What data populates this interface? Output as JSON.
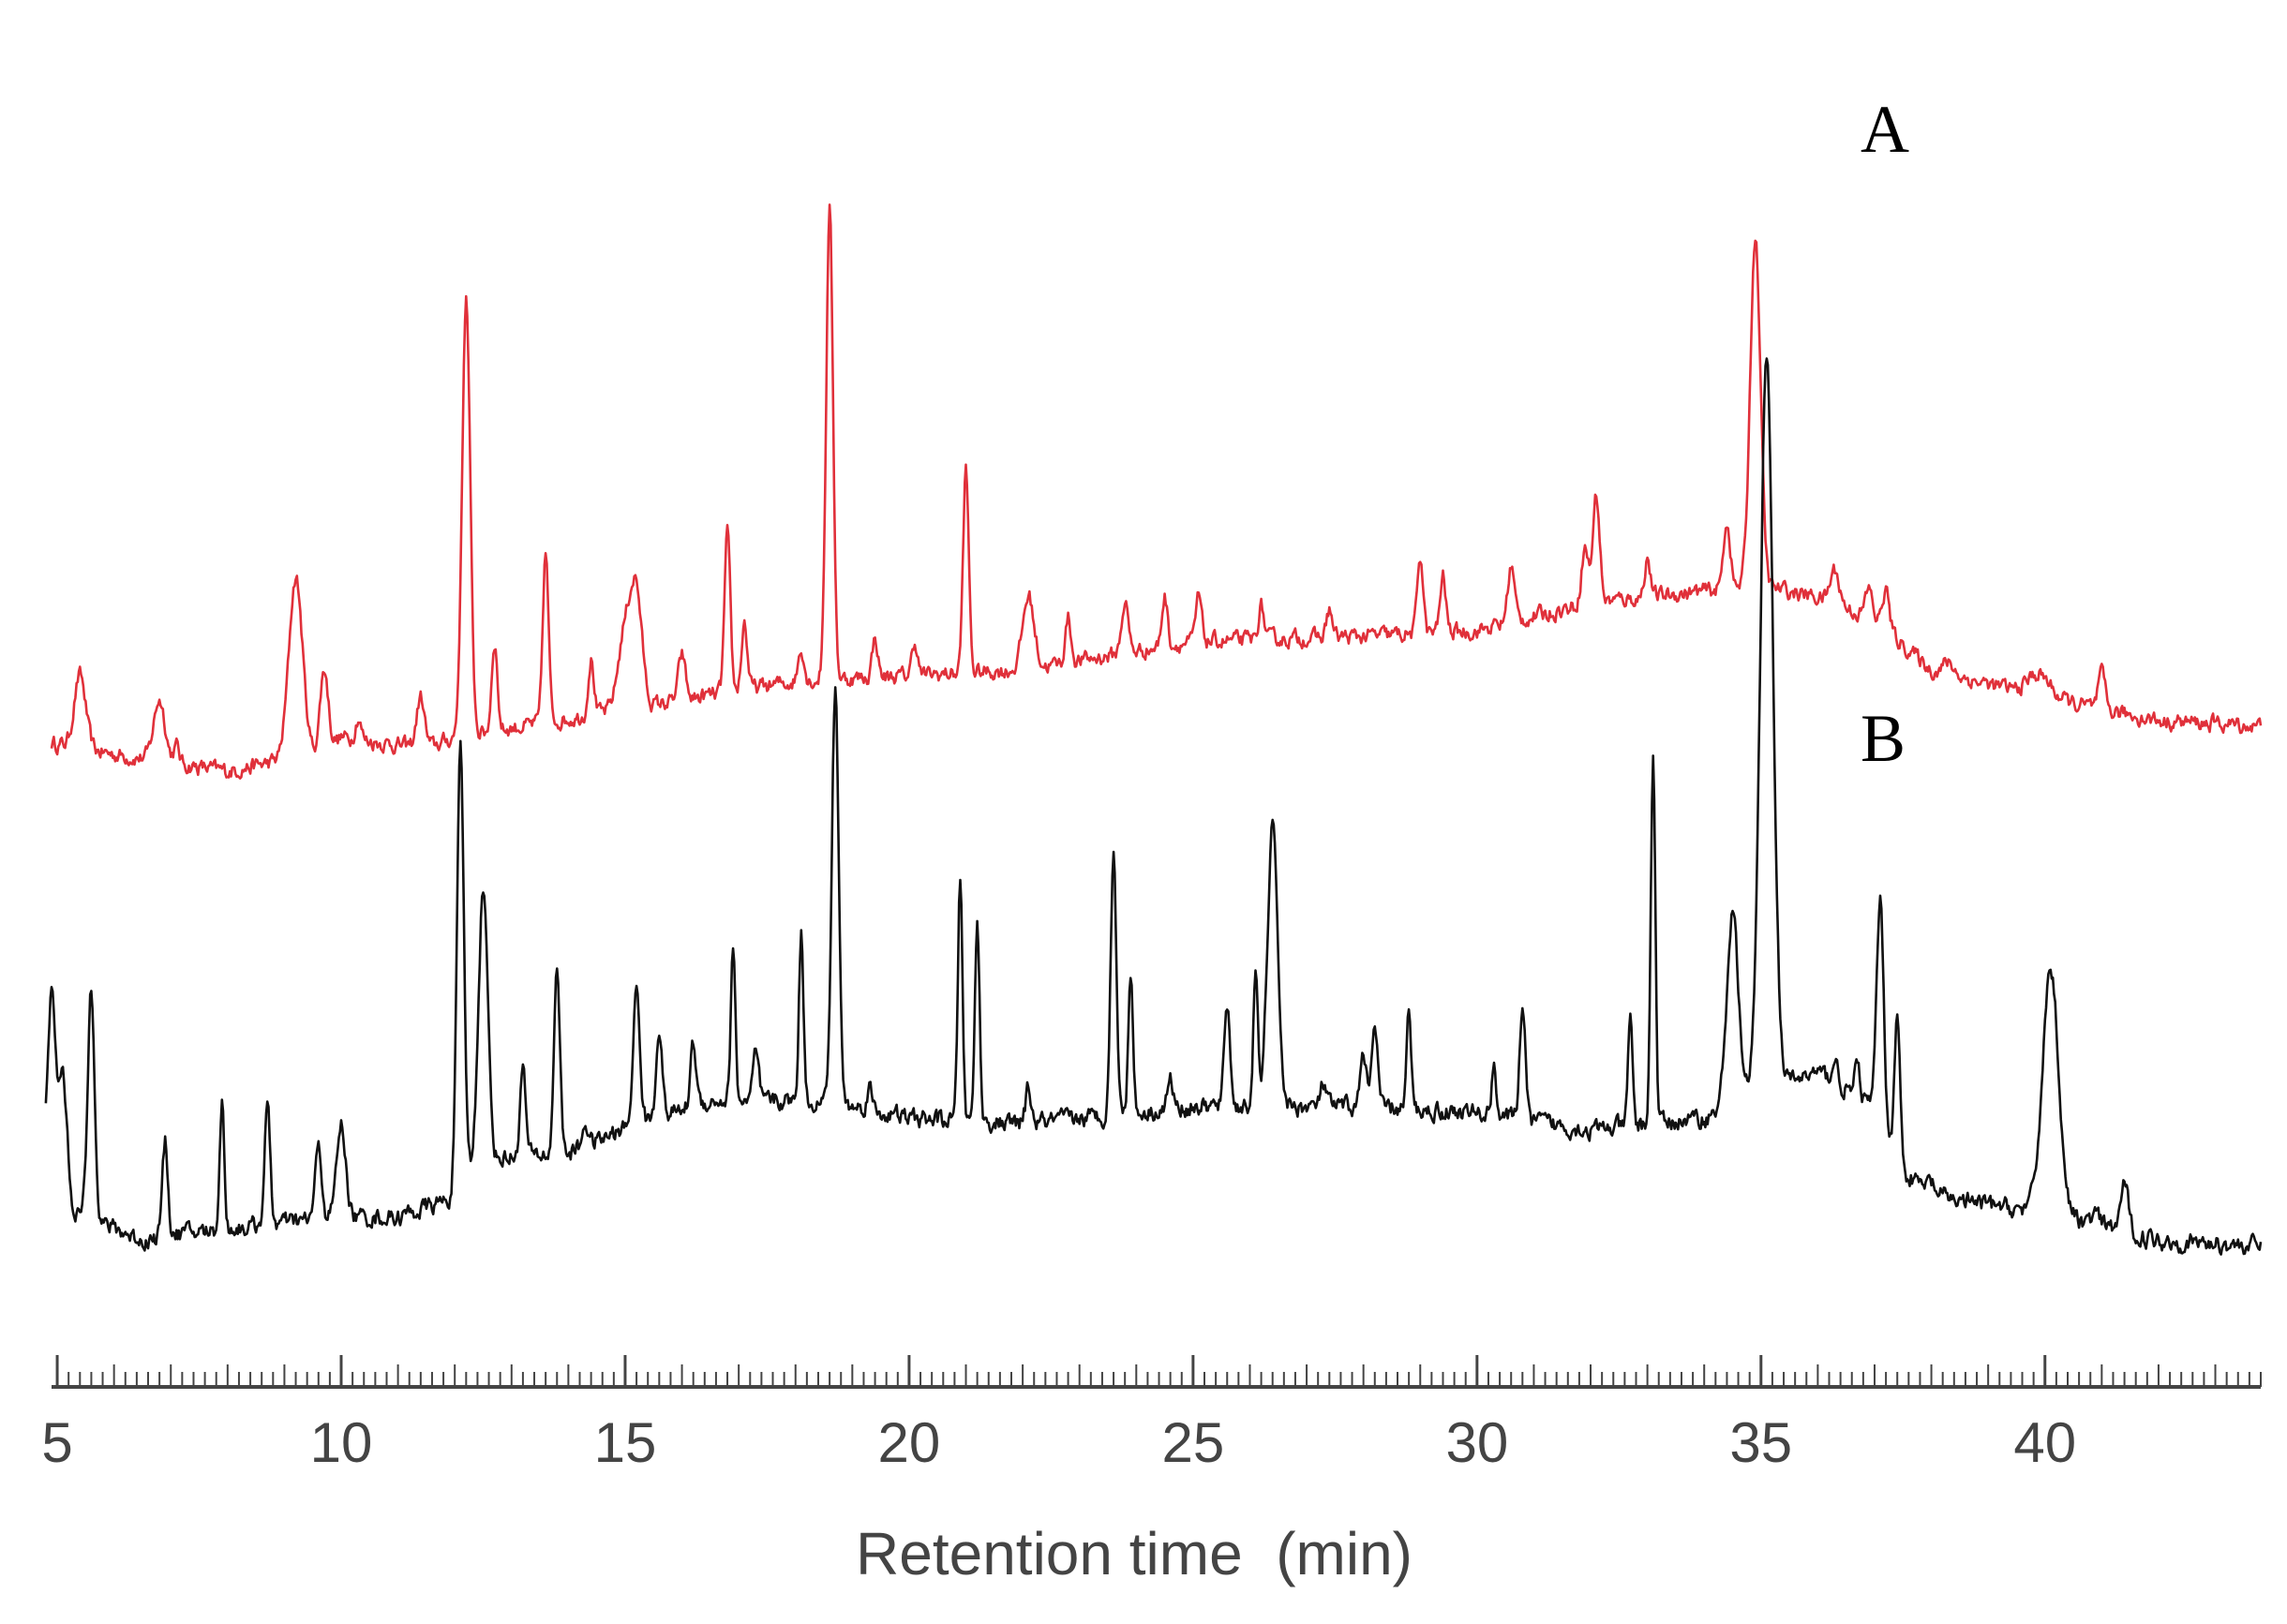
{
  "chart_data": {
    "type": "line",
    "title": "",
    "xlabel": "Retention time  (min)",
    "ylabel": "",
    "xlim": [
      4.9,
      43.8
    ],
    "ylim": [
      0,
      100
    ],
    "grid": false,
    "legend": "none",
    "x_ticks": [
      5,
      10,
      15,
      20,
      25,
      30,
      35,
      40
    ],
    "minor_tick_step": 0.2,
    "series": [
      {
        "name": "A",
        "label": "A",
        "color": "#e0303a",
        "baseline": [
          [
            4.9,
            2
          ],
          [
            6,
            0
          ],
          [
            8,
            -3
          ],
          [
            9.5,
            0
          ],
          [
            10,
            3
          ],
          [
            11.5,
            1
          ],
          [
            12,
            3
          ],
          [
            15,
            8
          ],
          [
            18,
            13
          ],
          [
            20,
            14
          ],
          [
            22,
            15
          ],
          [
            25,
            20
          ],
          [
            28,
            21
          ],
          [
            30,
            22
          ],
          [
            32,
            27
          ],
          [
            34,
            29
          ],
          [
            35,
            30
          ],
          [
            36,
            28
          ],
          [
            37,
            24
          ],
          [
            38,
            15
          ],
          [
            40,
            10
          ],
          [
            42,
            6
          ],
          [
            43.8,
            5
          ]
        ],
        "peaks": [
          [
            5.4,
            13,
            0.1
          ],
          [
            6.8,
            11,
            0.1
          ],
          [
            7.1,
            3,
            0.05
          ],
          [
            9.2,
            32,
            0.12
          ],
          [
            9.7,
            14,
            0.07
          ],
          [
            10.3,
            4,
            0.05
          ],
          [
            11.4,
            9,
            0.07
          ],
          [
            12.2,
            78,
            0.07
          ],
          [
            12.7,
            16,
            0.05
          ],
          [
            13.6,
            30,
            0.05
          ],
          [
            14.4,
            10,
            0.05
          ],
          [
            15.0,
            14,
            0.12
          ],
          [
            15.2,
            19,
            0.1
          ],
          [
            16.0,
            8,
            0.06
          ],
          [
            16.8,
            28,
            0.05
          ],
          [
            17.1,
            12,
            0.05
          ],
          [
            18.1,
            6,
            0.05
          ],
          [
            18.6,
            84,
            0.06
          ],
          [
            19.4,
            7,
            0.05
          ],
          [
            20.1,
            6,
            0.05
          ],
          [
            21.0,
            36,
            0.05
          ],
          [
            22.1,
            13,
            0.1
          ],
          [
            22.8,
            8,
            0.05
          ],
          [
            23.8,
            9,
            0.06
          ],
          [
            24.5,
            9,
            0.05
          ],
          [
            25.1,
            8,
            0.05
          ],
          [
            26.2,
            6,
            0.05
          ],
          [
            27.4,
            5,
            0.05
          ],
          [
            29.0,
            14,
            0.05
          ],
          [
            29.4,
            10,
            0.05
          ],
          [
            30.6,
            10,
            0.06
          ],
          [
            31.9,
            10,
            0.06
          ],
          [
            32.1,
            19,
            0.06
          ],
          [
            33.0,
            7,
            0.05
          ],
          [
            34.4,
            12,
            0.06
          ],
          [
            34.9,
            62,
            0.09
          ],
          [
            36.3,
            6,
            0.08
          ],
          [
            36.9,
            5,
            0.06
          ],
          [
            37.2,
            7,
            0.06
          ],
          [
            38.3,
            2,
            0.1
          ],
          [
            39.9,
            4,
            0.2
          ],
          [
            41.0,
            6,
            0.06
          ]
        ]
      },
      {
        "name": "B",
        "label": "B",
        "color": "#111111",
        "baseline": [
          [
            4.8,
            15
          ],
          [
            5.3,
            6
          ],
          [
            6.5,
            1
          ],
          [
            7,
            2
          ],
          [
            8,
            3
          ],
          [
            10,
            5
          ],
          [
            11,
            5
          ],
          [
            11.9,
            8
          ],
          [
            12.4,
            15
          ],
          [
            14,
            16
          ],
          [
            15.2,
            21
          ],
          [
            16.5,
            25
          ],
          [
            18.5,
            25
          ],
          [
            20,
            22
          ],
          [
            22,
            21
          ],
          [
            25,
            24
          ],
          [
            28,
            24
          ],
          [
            30,
            23
          ],
          [
            32,
            20
          ],
          [
            34,
            22
          ],
          [
            35.0,
            27
          ],
          [
            36,
            30
          ],
          [
            37,
            24
          ],
          [
            37.5,
            13
          ],
          [
            38,
            9
          ],
          [
            39,
            7
          ],
          [
            40,
            6
          ],
          [
            42,
            1
          ],
          [
            43.8,
            0
          ]
        ],
        "peaks": [
          [
            4.9,
            30,
            0.07
          ],
          [
            5.1,
            20,
            0.07
          ],
          [
            5.6,
            40,
            0.06
          ],
          [
            6.9,
            16,
            0.05
          ],
          [
            7.9,
            22,
            0.04
          ],
          [
            8.7,
            20,
            0.05
          ],
          [
            9.6,
            12,
            0.06
          ],
          [
            10.0,
            16,
            0.08
          ],
          [
            12.1,
            74,
            0.06
          ],
          [
            12.5,
            47,
            0.08
          ],
          [
            13.2,
            15,
            0.05
          ],
          [
            13.8,
            33,
            0.05
          ],
          [
            14.3,
            4,
            0.05
          ],
          [
            15.2,
            23,
            0.06
          ],
          [
            15.6,
            16,
            0.05
          ],
          [
            16.2,
            11,
            0.05
          ],
          [
            16.9,
            26,
            0.04
          ],
          [
            17.3,
            8,
            0.05
          ],
          [
            18.1,
            29,
            0.04
          ],
          [
            18.7,
            71,
            0.06
          ],
          [
            19.3,
            4,
            0.05
          ],
          [
            20.9,
            42,
            0.04
          ],
          [
            21.2,
            35,
            0.04
          ],
          [
            22.1,
            6,
            0.05
          ],
          [
            23.6,
            45,
            0.05
          ],
          [
            23.9,
            25,
            0.04
          ],
          [
            24.6,
            5,
            0.05
          ],
          [
            25.6,
            18,
            0.05
          ],
          [
            26.1,
            22,
            0.04
          ],
          [
            26.4,
            48,
            0.09
          ],
          [
            27.3,
            4,
            0.05
          ],
          [
            28.0,
            10,
            0.05
          ],
          [
            28.2,
            14,
            0.05
          ],
          [
            28.8,
            16,
            0.04
          ],
          [
            30.3,
            9,
            0.04
          ],
          [
            30.8,
            20,
            0.05
          ],
          [
            32.7,
            18,
            0.04
          ],
          [
            33.1,
            63,
            0.04
          ],
          [
            34.5,
            33,
            0.1
          ],
          [
            35.1,
            127,
            0.11
          ],
          [
            36.3,
            4,
            0.05
          ],
          [
            36.7,
            5,
            0.05
          ],
          [
            37.1,
            38,
            0.06
          ],
          [
            37.4,
            24,
            0.05
          ],
          [
            38.0,
            2,
            0.06
          ],
          [
            40.1,
            42,
            0.14
          ],
          [
            40.9,
            2,
            0.05
          ],
          [
            41.4,
            8,
            0.07
          ]
        ]
      }
    ]
  }
}
